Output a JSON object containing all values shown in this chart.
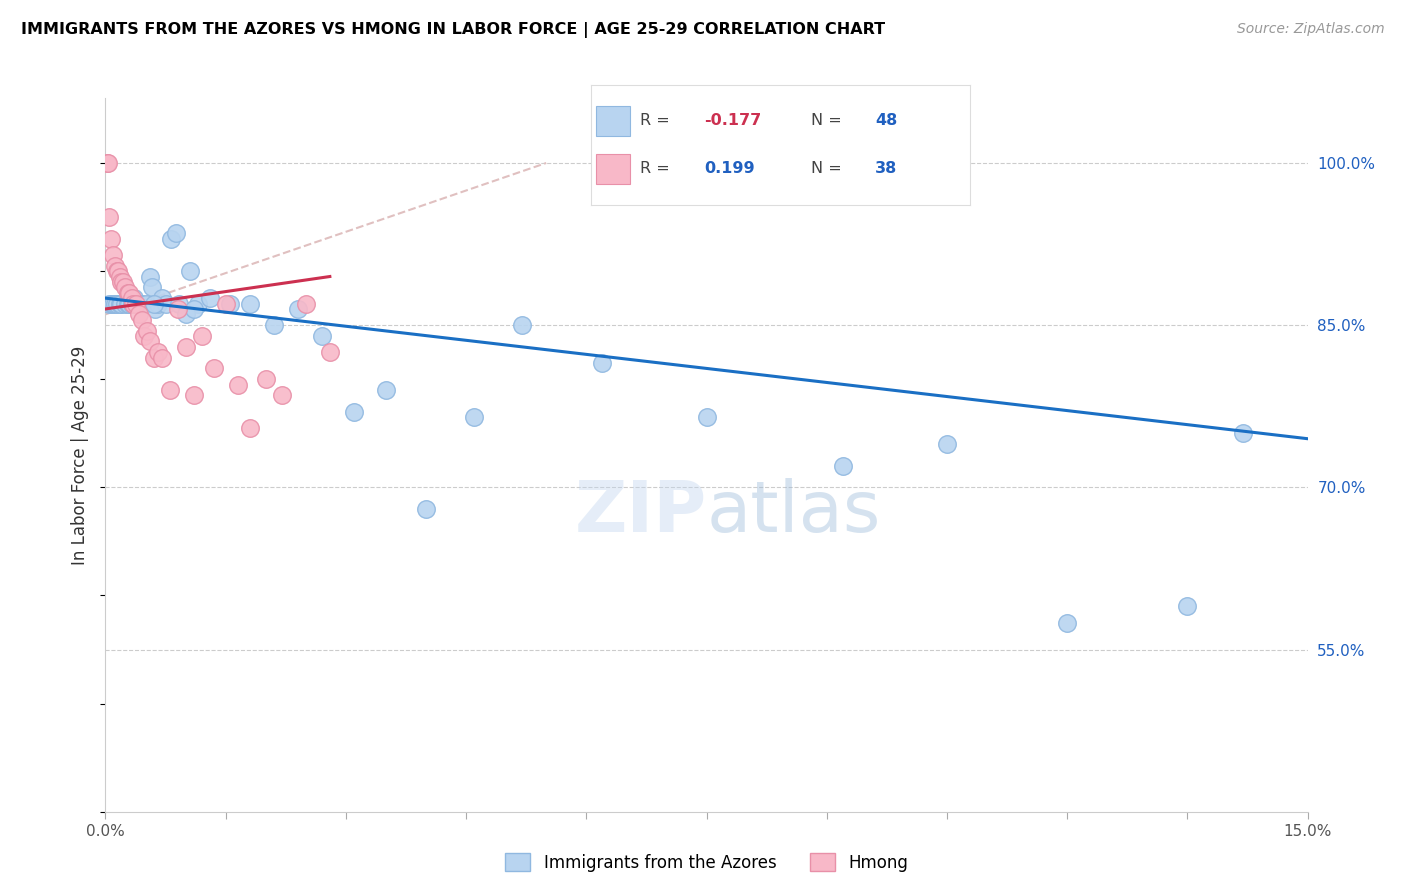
{
  "title": "IMMIGRANTS FROM THE AZORES VS HMONG IN LABOR FORCE | AGE 25-29 CORRELATION CHART",
  "source": "Source: ZipAtlas.com",
  "ylabel": "In Labor Force | Age 25-29",
  "xlim": [
    0.0,
    15.0
  ],
  "ylim": [
    40.0,
    106.0
  ],
  "y_ticks": [
    55.0,
    70.0,
    85.0,
    100.0
  ],
  "y_tick_labels": [
    "55.0%",
    "70.0%",
    "85.0%",
    "100.0%"
  ],
  "x_ticks": [
    0.0,
    1.5,
    3.0,
    4.5,
    6.0,
    7.5,
    9.0,
    10.5,
    12.0,
    13.5,
    15.0
  ],
  "azores_color": "#b8d4f0",
  "azores_edge_color": "#90b8e0",
  "hmong_color": "#f8b8c8",
  "hmong_edge_color": "#e890a8",
  "azores_line_color": "#1a6fc4",
  "hmong_line_color": "#cc3050",
  "ref_line_color": "#e0c0c0",
  "legend_label_azores": "Immigrants from the Azores",
  "legend_label_hmong": "Hmong",
  "azores_scatter_x": [
    0.05,
    0.08,
    0.1,
    0.12,
    0.15,
    0.18,
    0.2,
    0.25,
    0.28,
    0.3,
    0.33,
    0.36,
    0.4,
    0.43,
    0.46,
    0.5,
    0.55,
    0.58,
    0.62,
    0.65,
    0.7,
    0.75,
    0.82,
    0.88,
    0.92,
    1.05,
    1.15,
    1.3,
    1.55,
    1.8,
    2.1,
    2.4,
    2.7,
    3.1,
    3.5,
    4.0,
    4.6,
    5.2,
    6.2,
    7.5,
    9.2,
    10.5,
    12.0,
    13.5,
    14.2,
    1.0,
    1.1,
    0.6
  ],
  "azores_scatter_y": [
    87.0,
    87.0,
    87.0,
    87.0,
    87.0,
    87.0,
    87.0,
    87.0,
    87.0,
    87.0,
    87.0,
    87.5,
    87.0,
    87.0,
    87.0,
    87.0,
    89.5,
    88.5,
    86.5,
    87.0,
    87.5,
    87.0,
    93.0,
    93.5,
    87.0,
    90.0,
    87.0,
    87.5,
    87.0,
    87.0,
    85.0,
    86.5,
    84.0,
    77.0,
    79.0,
    68.0,
    76.5,
    85.0,
    81.5,
    76.5,
    72.0,
    74.0,
    57.5,
    59.0,
    75.0,
    86.0,
    86.5,
    87.0
  ],
  "hmong_scatter_x": [
    0.02,
    0.03,
    0.05,
    0.07,
    0.1,
    0.12,
    0.14,
    0.16,
    0.18,
    0.2,
    0.22,
    0.25,
    0.28,
    0.3,
    0.33,
    0.35,
    0.38,
    0.42,
    0.45,
    0.48,
    0.52,
    0.55,
    0.6,
    0.65,
    0.7,
    0.8,
    0.9,
    1.0,
    1.1,
    1.2,
    1.35,
    1.5,
    1.65,
    1.8,
    2.0,
    2.2,
    2.5,
    2.8
  ],
  "hmong_scatter_y": [
    100.0,
    100.0,
    95.0,
    93.0,
    91.5,
    90.5,
    90.0,
    90.0,
    89.5,
    89.0,
    89.0,
    88.5,
    88.0,
    88.0,
    87.5,
    87.0,
    87.0,
    86.0,
    85.5,
    84.0,
    84.5,
    83.5,
    82.0,
    82.5,
    82.0,
    79.0,
    86.5,
    83.0,
    78.5,
    84.0,
    81.0,
    87.0,
    79.5,
    75.5,
    80.0,
    78.5,
    87.0,
    82.5
  ],
  "azores_line_x": [
    0.0,
    15.0
  ],
  "azores_line_y": [
    87.5,
    74.5
  ],
  "hmong_line_x": [
    0.0,
    2.8
  ],
  "hmong_line_y": [
    86.5,
    89.5
  ],
  "ref_line_x": [
    0.0,
    5.5
  ],
  "ref_line_y": [
    86.0,
    100.0
  ]
}
